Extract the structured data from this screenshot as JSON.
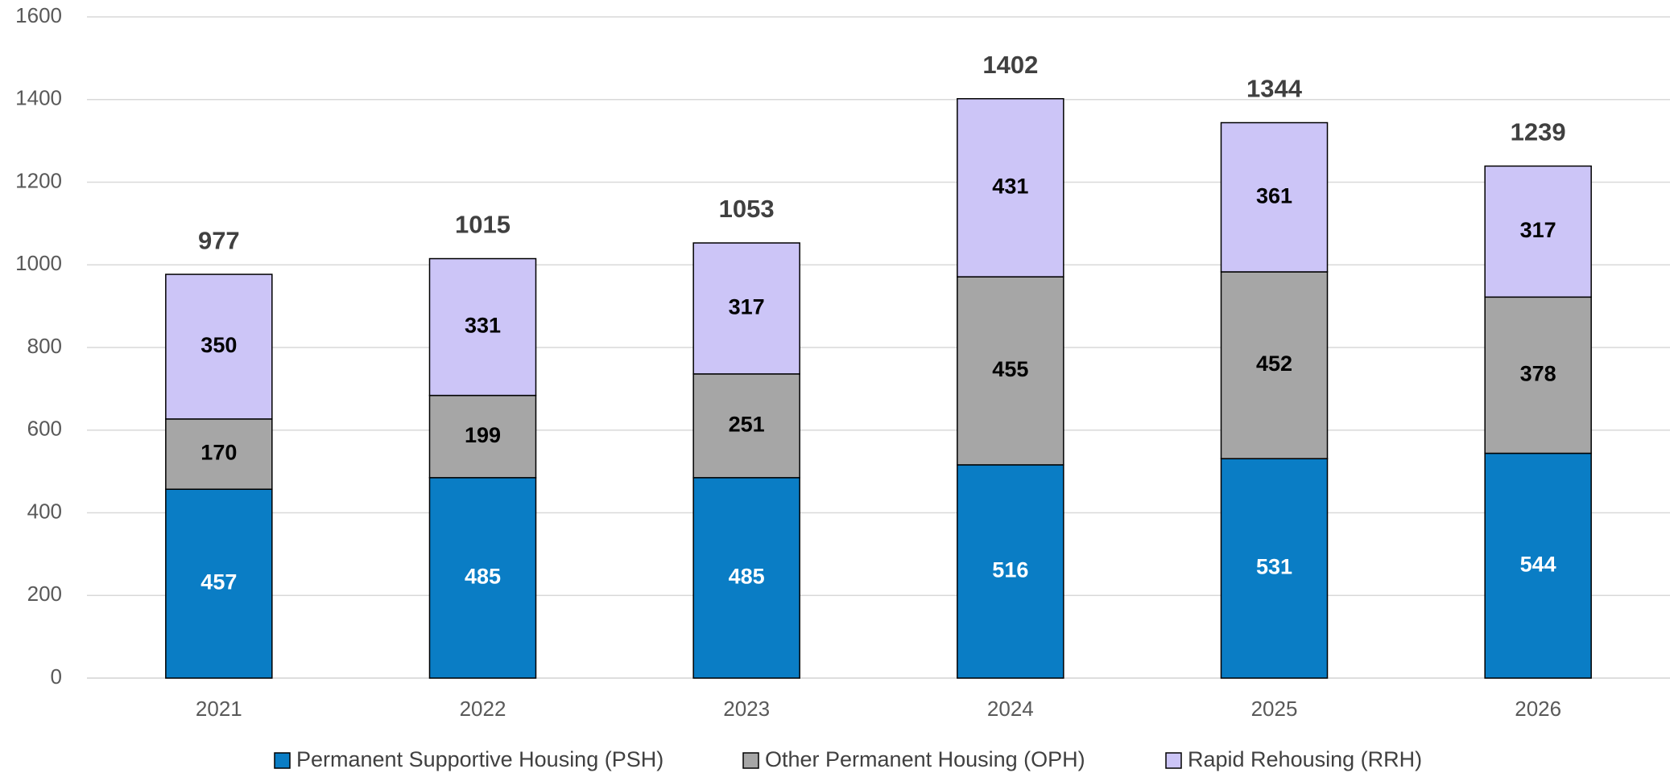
{
  "chart_data": {
    "type": "stacked_bar",
    "categories": [
      "2021",
      "2022",
      "2023",
      "2024",
      "2025",
      "2026"
    ],
    "series": [
      {
        "name": "Permanent Supportive Housing (PSH)",
        "color": "#0a7dc5",
        "values": [
          457,
          485,
          485,
          516,
          531,
          544
        ]
      },
      {
        "name": "Other Permanent Housing (OPH)",
        "color": "#a6a6a6",
        "values": [
          170,
          199,
          251,
          455,
          452,
          378
        ]
      },
      {
        "name": "Rapid Rehousing (RRH)",
        "color": "#ccc5f7",
        "values": [
          350,
          331,
          317,
          431,
          361,
          317
        ]
      }
    ],
    "totals": [
      977,
      1015,
      1053,
      1402,
      1344,
      1239
    ],
    "ylim": [
      0,
      1600
    ],
    "yticks": [
      0,
      200,
      400,
      600,
      800,
      1000,
      1200,
      1400,
      1600
    ],
    "grid": true,
    "legend": "bottom"
  }
}
